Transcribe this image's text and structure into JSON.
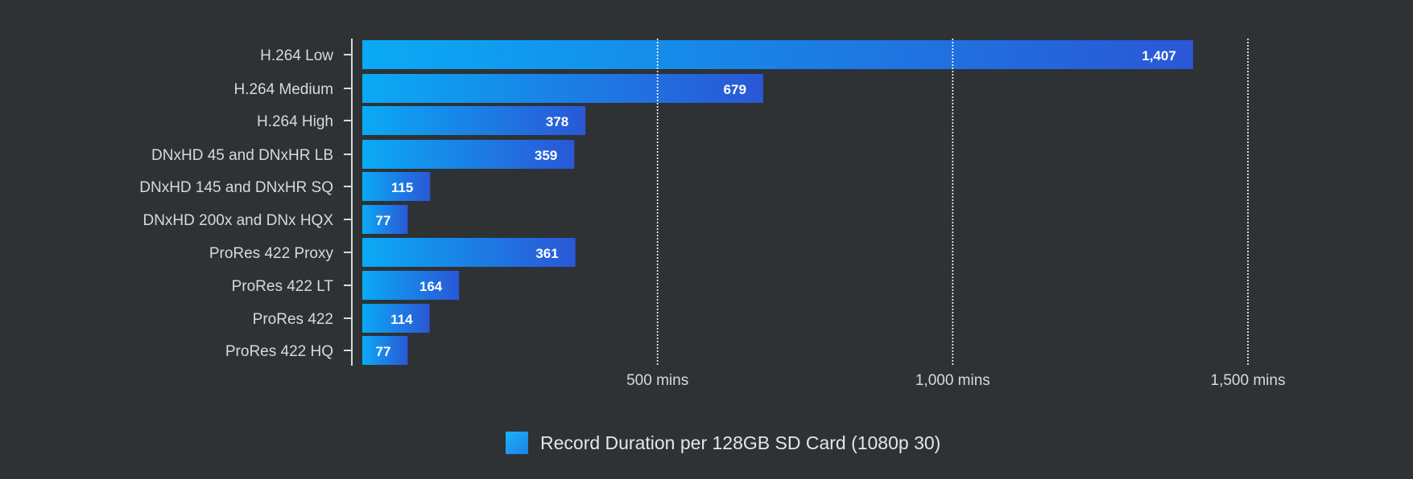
{
  "chart_data": {
    "type": "bar",
    "orientation": "horizontal",
    "categories": [
      "H.264 Low",
      "H.264 Medium",
      "H.264 High",
      "DNxHD 45 and DNxHR LB",
      "DNxHD 145 and DNxHR SQ",
      "DNxHD 200x and DNx HQX",
      "ProRes 422 Proxy",
      "ProRes 422 LT",
      "ProRes 422",
      "ProRes 422 HQ"
    ],
    "series": [
      {
        "name": "Record Duration per 128GB SD Card (1080p 30)",
        "values": [
          1407,
          679,
          378,
          359,
          115,
          77,
          361,
          164,
          114,
          77
        ],
        "value_labels": [
          "1,407",
          "679",
          "378",
          "359",
          "115",
          "77",
          "361",
          "164",
          "114",
          "77"
        ]
      }
    ],
    "x_ticks": [
      {
        "value": 500,
        "label": "500 mins"
      },
      {
        "value": 1000,
        "label": "1,000 mins"
      },
      {
        "value": 1500,
        "label": "1,500 mins"
      }
    ],
    "xlim": [
      0,
      1500
    ],
    "grid": "vertical dotted",
    "legend_position": "bottom-center",
    "colors": {
      "background": "#2e3235",
      "bar_start": "#0aaaf5",
      "bar_end": "#2a57d6",
      "text": "#d7dadd",
      "gridline": "#ffffff"
    }
  }
}
